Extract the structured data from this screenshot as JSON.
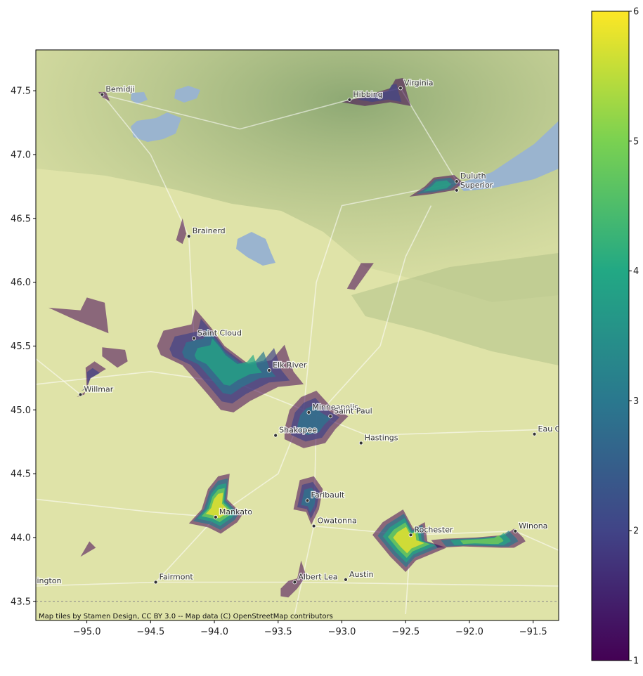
{
  "attribution": "Map tiles by Stamen Design, CC BY 3.0 -- Map data (C) OpenStreetMap contributors",
  "map": {
    "extent": {
      "lon": [
        -95.4,
        -91.3
      ],
      "lat": [
        43.35,
        47.82
      ]
    },
    "x_ticks": [
      -95.0,
      -94.5,
      -94.0,
      -93.5,
      -93.0,
      -92.5,
      -92.0,
      -91.5
    ],
    "x_tick_labels": [
      "−95.0",
      "−94.5",
      "−94.0",
      "−93.5",
      "−93.0",
      "−92.5",
      "−92.0",
      "−91.5"
    ],
    "y_ticks": [
      43.5,
      44.0,
      44.5,
      45.0,
      45.5,
      46.0,
      46.5,
      47.0,
      47.5
    ],
    "y_tick_labels": [
      "43.5",
      "44.0",
      "44.5",
      "45.0",
      "45.5",
      "46.0",
      "46.5",
      "47.0",
      "47.5"
    ],
    "colorbar": {
      "min": 1,
      "max": 6,
      "ticks": [
        1,
        2,
        3,
        4,
        5,
        6
      ],
      "tick_labels": [
        "1",
        "2",
        "3",
        "4",
        "5",
        "6"
      ],
      "colormap": "viridis"
    },
    "colors": {
      "land": "#dfe3a8",
      "forest": "#8fa874",
      "water": "#9ab4cf",
      "road": "#ffffff"
    },
    "cities": [
      {
        "name": "Bemidji",
        "lon": -94.88,
        "lat": 47.47
      },
      {
        "name": "Virginia",
        "lon": -92.54,
        "lat": 47.52
      },
      {
        "name": "Hibbing",
        "lon": -92.94,
        "lat": 47.43
      },
      {
        "name": "Duluth",
        "lon": -92.1,
        "lat": 46.79
      },
      {
        "name": "Superior",
        "lon": -92.1,
        "lat": 46.72
      },
      {
        "name": "Brainerd",
        "lon": -94.2,
        "lat": 46.36
      },
      {
        "name": "Saint Cloud",
        "lon": -94.16,
        "lat": 45.56
      },
      {
        "name": "Elk River",
        "lon": -93.57,
        "lat": 45.31
      },
      {
        "name": "Willmar",
        "lon": -95.05,
        "lat": 45.12
      },
      {
        "name": "Minneapolis",
        "lon": -93.26,
        "lat": 44.98
      },
      {
        "name": "Saint Paul",
        "lon": -93.09,
        "lat": 44.95
      },
      {
        "name": "Shakopee",
        "lon": -93.52,
        "lat": 44.8
      },
      {
        "name": "Hastings",
        "lon": -92.85,
        "lat": 44.74
      },
      {
        "name": "Eau Claire",
        "lon": -91.49,
        "lat": 44.81
      },
      {
        "name": "Faribault",
        "lon": -93.27,
        "lat": 44.29
      },
      {
        "name": "Mankato",
        "lon": -93.99,
        "lat": 44.16
      },
      {
        "name": "Owatonna",
        "lon": -93.22,
        "lat": 44.09
      },
      {
        "name": "Rochester",
        "lon": -92.46,
        "lat": 44.02
      },
      {
        "name": "Winona",
        "lon": -91.64,
        "lat": 44.05
      },
      {
        "name": "Albert Lea",
        "lon": -93.37,
        "lat": 43.65
      },
      {
        "name": "Austin",
        "lon": -92.97,
        "lat": 43.67
      },
      {
        "name": "Fairmont",
        "lon": -94.46,
        "lat": 43.65
      },
      {
        "name": "Worthington",
        "lon": -95.6,
        "lat": 43.62
      }
    ],
    "regions": [
      {
        "name": "bemidji",
        "points": [
          [
            -94.91,
            47.49
          ],
          [
            -94.85,
            47.49
          ],
          [
            -94.82,
            47.42
          ],
          [
            -94.88,
            47.45
          ]
        ],
        "layers": [
          1
        ]
      },
      {
        "name": "iron-range",
        "points": [
          [
            -93.0,
            47.41
          ],
          [
            -92.85,
            47.45
          ],
          [
            -92.62,
            47.52
          ],
          [
            -92.58,
            47.59
          ],
          [
            -92.52,
            47.6
          ],
          [
            -92.49,
            47.48
          ],
          [
            -92.46,
            47.38
          ],
          [
            -92.62,
            47.41
          ],
          [
            -92.82,
            47.38
          ]
        ],
        "layers": [
          1,
          2
        ]
      },
      {
        "name": "duluth",
        "points": [
          [
            -92.47,
            46.67
          ],
          [
            -92.35,
            46.75
          ],
          [
            -92.28,
            46.82
          ],
          [
            -92.12,
            46.84
          ],
          [
            -92.05,
            46.78
          ],
          [
            -92.12,
            46.72
          ],
          [
            -92.3,
            46.69
          ]
        ],
        "layers": [
          1,
          3,
          4
        ]
      },
      {
        "name": "brainerd",
        "points": [
          [
            -94.25,
            46.5
          ],
          [
            -94.22,
            46.38
          ],
          [
            -94.25,
            46.3
          ],
          [
            -94.3,
            46.33
          ]
        ],
        "layers": [
          1
        ]
      },
      {
        "name": "mid-north",
        "points": [
          [
            -92.85,
            46.15
          ],
          [
            -92.75,
            46.15
          ],
          [
            -92.9,
            45.94
          ],
          [
            -92.96,
            45.95
          ]
        ],
        "layers": [
          1
        ]
      },
      {
        "name": "west-a",
        "points": [
          [
            -95.3,
            45.8
          ],
          [
            -95.05,
            45.78
          ],
          [
            -95.0,
            45.88
          ],
          [
            -94.86,
            45.84
          ],
          [
            -94.83,
            45.6
          ],
          [
            -95.08,
            45.7
          ]
        ],
        "layers": [
          1
        ]
      },
      {
        "name": "west-b",
        "points": [
          [
            -94.88,
            45.49
          ],
          [
            -94.7,
            45.47
          ],
          [
            -94.68,
            45.38
          ],
          [
            -94.76,
            45.33
          ],
          [
            -94.88,
            45.42
          ]
        ],
        "layers": [
          1
        ]
      },
      {
        "name": "willmar",
        "points": [
          [
            -95.08,
            45.1
          ],
          [
            -95.0,
            45.15
          ],
          [
            -95.01,
            45.33
          ],
          [
            -94.94,
            45.38
          ],
          [
            -94.85,
            45.32
          ],
          [
            -94.97,
            45.25
          ],
          [
            -95.02,
            45.12
          ]
        ],
        "layers": [
          1,
          2
        ]
      },
      {
        "name": "st-cloud-corridor",
        "points": [
          [
            -94.45,
            45.5
          ],
          [
            -94.4,
            45.62
          ],
          [
            -94.18,
            45.67
          ],
          [
            -94.15,
            45.79
          ],
          [
            -94.03,
            45.65
          ],
          [
            -93.92,
            45.5
          ],
          [
            -93.72,
            45.35
          ],
          [
            -93.55,
            45.39
          ],
          [
            -93.45,
            45.51
          ],
          [
            -93.38,
            45.3
          ],
          [
            -93.3,
            45.2
          ],
          [
            -93.5,
            45.18
          ],
          [
            -93.72,
            45.07
          ],
          [
            -93.85,
            44.98
          ],
          [
            -93.95,
            45.0
          ],
          [
            -94.05,
            45.12
          ],
          [
            -94.25,
            45.35
          ],
          [
            -94.42,
            45.43
          ]
        ],
        "layers": [
          1,
          2,
          3,
          4
        ]
      },
      {
        "name": "twin-cities",
        "points": [
          [
            -93.45,
            44.85
          ],
          [
            -93.41,
            45.0
          ],
          [
            -93.32,
            45.1
          ],
          [
            -93.2,
            45.15
          ],
          [
            -93.1,
            45.04
          ],
          [
            -92.95,
            44.95
          ],
          [
            -93.05,
            44.85
          ],
          [
            -93.13,
            44.74
          ],
          [
            -93.3,
            44.7
          ],
          [
            -93.45,
            44.77
          ]
        ],
        "layers": [
          1,
          2,
          3
        ]
      },
      {
        "name": "mankato",
        "points": [
          [
            -94.2,
            44.11
          ],
          [
            -94.1,
            44.22
          ],
          [
            -94.05,
            44.38
          ],
          [
            -93.97,
            44.48
          ],
          [
            -93.88,
            44.5
          ],
          [
            -93.9,
            44.3
          ],
          [
            -93.78,
            44.18
          ],
          [
            -93.82,
            44.12
          ],
          [
            -93.95,
            44.03
          ],
          [
            -94.05,
            44.08
          ]
        ],
        "layers": [
          1,
          3,
          4,
          5,
          6
        ]
      },
      {
        "name": "faribault",
        "points": [
          [
            -93.38,
            44.22
          ],
          [
            -93.33,
            44.45
          ],
          [
            -93.22,
            44.48
          ],
          [
            -93.15,
            44.38
          ],
          [
            -93.18,
            44.22
          ],
          [
            -93.24,
            44.1
          ],
          [
            -93.28,
            44.2
          ]
        ],
        "layers": [
          1,
          2,
          3
        ]
      },
      {
        "name": "rochester",
        "points": [
          [
            -92.76,
            44.02
          ],
          [
            -92.68,
            44.12
          ],
          [
            -92.52,
            44.22
          ],
          [
            -92.44,
            44.07
          ],
          [
            -92.35,
            44.12
          ],
          [
            -92.33,
            43.97
          ],
          [
            -92.18,
            43.92
          ],
          [
            -92.42,
            43.82
          ],
          [
            -92.5,
            43.73
          ],
          [
            -92.62,
            43.85
          ]
        ],
        "layers": [
          1,
          3,
          4,
          5,
          6
        ]
      },
      {
        "name": "rochester-winona",
        "points": [
          [
            -92.3,
            43.98
          ],
          [
            -92.2,
            43.99
          ],
          [
            -91.95,
            44.0
          ],
          [
            -91.72,
            44.02
          ],
          [
            -91.65,
            44.07
          ],
          [
            -91.58,
            44.0
          ],
          [
            -91.56,
            43.97
          ],
          [
            -91.65,
            43.92
          ],
          [
            -91.75,
            43.92
          ],
          [
            -92.05,
            43.93
          ],
          [
            -92.25,
            43.92
          ]
        ],
        "layers": [
          1,
          3,
          4,
          5
        ]
      },
      {
        "name": "south-west",
        "points": [
          [
            -95.05,
            43.85
          ],
          [
            -94.98,
            43.97
          ],
          [
            -94.93,
            43.92
          ]
        ],
        "layers": [
          1
        ]
      },
      {
        "name": "albert-lea",
        "points": [
          [
            -93.48,
            43.6
          ],
          [
            -93.42,
            43.66
          ],
          [
            -93.35,
            43.68
          ],
          [
            -93.32,
            43.82
          ],
          [
            -93.28,
            43.7
          ],
          [
            -93.35,
            43.6
          ],
          [
            -93.42,
            43.53
          ],
          [
            -93.48,
            43.54
          ]
        ],
        "layers": [
          1
        ]
      }
    ]
  }
}
